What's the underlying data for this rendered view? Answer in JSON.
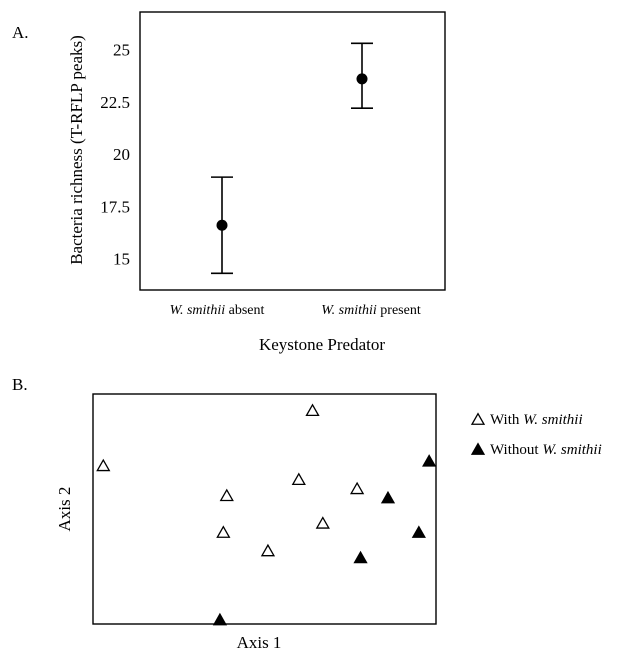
{
  "chart_data": [
    {
      "panel_label": "A.",
      "type": "errorbar",
      "categories": [
        "W. smithii absent",
        "W. smithii present"
      ],
      "category_parts": [
        {
          "italic": "W. smithii",
          "rest": " absent"
        },
        {
          "italic": "W. smithii",
          "rest": " present"
        }
      ],
      "values": [
        16.6,
        23.6
      ],
      "error_low": [
        14.3,
        22.2
      ],
      "error_high": [
        18.9,
        25.3
      ],
      "xlabel": "Keystone Predator",
      "ylabel": "Bacteria richness (T-RFLP peaks)",
      "yticks": [
        15,
        17.5,
        20,
        22.5,
        25
      ],
      "ytick_labels": [
        "15",
        "17.5",
        "20",
        "22.5",
        "25"
      ],
      "ylim": [
        13.5,
        26.8
      ]
    },
    {
      "panel_label": "B.",
      "type": "scatter",
      "xlabel": "Axis 1",
      "ylabel": "Axis 2",
      "xlim": [
        0,
        1
      ],
      "ylim": [
        0,
        1
      ],
      "series": [
        {
          "name_parts": {
            "plain": "With ",
            "italic": "W. smithii"
          },
          "marker": "open-triangle",
          "points": [
            [
              0.03,
              0.69
            ],
            [
              0.38,
              0.4
            ],
            [
              0.39,
              0.56
            ],
            [
              0.51,
              0.32
            ],
            [
              0.64,
              0.93
            ],
            [
              0.6,
              0.63
            ],
            [
              0.67,
              0.44
            ],
            [
              0.77,
              0.59
            ]
          ]
        },
        {
          "name_parts": {
            "plain": "Without ",
            "italic": "W. smithii"
          },
          "marker": "filled-triangle",
          "points": [
            [
              0.37,
              0.02
            ],
            [
              0.78,
              0.29
            ],
            [
              0.86,
              0.55
            ],
            [
              0.95,
              0.4
            ],
            [
              0.98,
              0.71
            ]
          ]
        }
      ]
    }
  ]
}
